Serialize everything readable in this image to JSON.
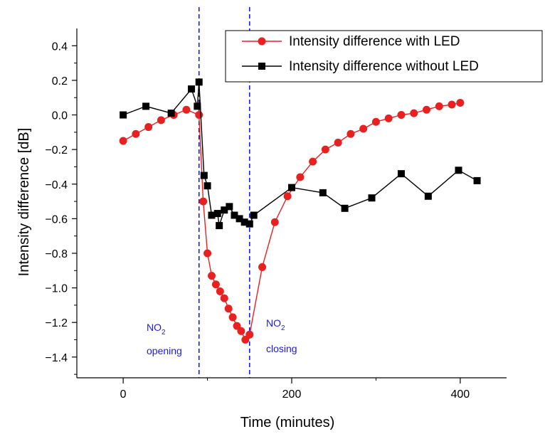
{
  "chart_data": {
    "type": "line",
    "xlabel": "Time (minutes)",
    "ylabel": "Intensity difference [dB]",
    "xlim": [
      -55,
      455
    ],
    "ylim": [
      -1.52,
      0.5
    ],
    "xticks": [
      "0",
      "200",
      "400"
    ],
    "yticks": [
      "0.4",
      "0.2",
      "0.0",
      "−0.2",
      "−0.4",
      "−0.6",
      "−0.8",
      "−1.0",
      "−1.2",
      "−1.4"
    ],
    "legend_position": "top-right",
    "series": [
      {
        "name": "Intensity difference with LED",
        "color": "#e82020",
        "marker": "circle",
        "points": [
          [
            0,
            -0.15
          ],
          [
            15,
            -0.11
          ],
          [
            30,
            -0.07
          ],
          [
            45,
            -0.03
          ],
          [
            60,
            0.0
          ],
          [
            75,
            0.03
          ],
          [
            90,
            0.0
          ],
          [
            95,
            -0.5
          ],
          [
            100,
            -0.8
          ],
          [
            105,
            -0.93
          ],
          [
            110,
            -0.98
          ],
          [
            115,
            -1.02
          ],
          [
            120,
            -1.06
          ],
          [
            125,
            -1.12
          ],
          [
            130,
            -1.17
          ],
          [
            135,
            -1.22
          ],
          [
            140,
            -1.25
          ],
          [
            145,
            -1.3
          ],
          [
            150,
            -1.27
          ],
          [
            165,
            -0.88
          ],
          [
            180,
            -0.62
          ],
          [
            195,
            -0.47
          ],
          [
            210,
            -0.36
          ],
          [
            225,
            -0.27
          ],
          [
            240,
            -0.2
          ],
          [
            255,
            -0.16
          ],
          [
            270,
            -0.11
          ],
          [
            285,
            -0.08
          ],
          [
            300,
            -0.04
          ],
          [
            315,
            -0.02
          ],
          [
            330,
            0.0
          ],
          [
            345,
            0.01
          ],
          [
            360,
            0.03
          ],
          [
            375,
            0.05
          ],
          [
            390,
            0.06
          ],
          [
            400,
            0.07
          ]
        ]
      },
      {
        "name": "Intensity difference without LED",
        "color": "#000000",
        "marker": "square",
        "points": [
          [
            0,
            0.0
          ],
          [
            27,
            0.05
          ],
          [
            57,
            0.01
          ],
          [
            81,
            0.15
          ],
          [
            88,
            0.05
          ],
          [
            90,
            0.19
          ],
          [
            96,
            -0.35
          ],
          [
            100,
            -0.41
          ],
          [
            105,
            -0.58
          ],
          [
            112,
            -0.57
          ],
          [
            114,
            -0.64
          ],
          [
            120,
            -0.55
          ],
          [
            126,
            -0.53
          ],
          [
            132,
            -0.58
          ],
          [
            138,
            -0.6
          ],
          [
            144,
            -0.62
          ],
          [
            150,
            -0.63
          ],
          [
            155,
            -0.58
          ],
          [
            200,
            -0.42
          ],
          [
            237,
            -0.45
          ],
          [
            263,
            -0.54
          ],
          [
            295,
            -0.48
          ],
          [
            330,
            -0.34
          ],
          [
            362,
            -0.47
          ],
          [
            398,
            -0.32
          ],
          [
            420,
            -0.38
          ]
        ]
      }
    ],
    "vlines": [
      {
        "x": 90,
        "color": "#1a1ae6",
        "style": "dashed"
      },
      {
        "x": 150,
        "color": "#1a1ae6",
        "style": "dashed"
      }
    ],
    "annotations": [
      {
        "key": "opening",
        "line1": "NO",
        "sub": "2",
        "line2": "opening"
      },
      {
        "key": "closing",
        "line1": "NO",
        "sub": "2",
        "line2": "closing"
      }
    ]
  }
}
